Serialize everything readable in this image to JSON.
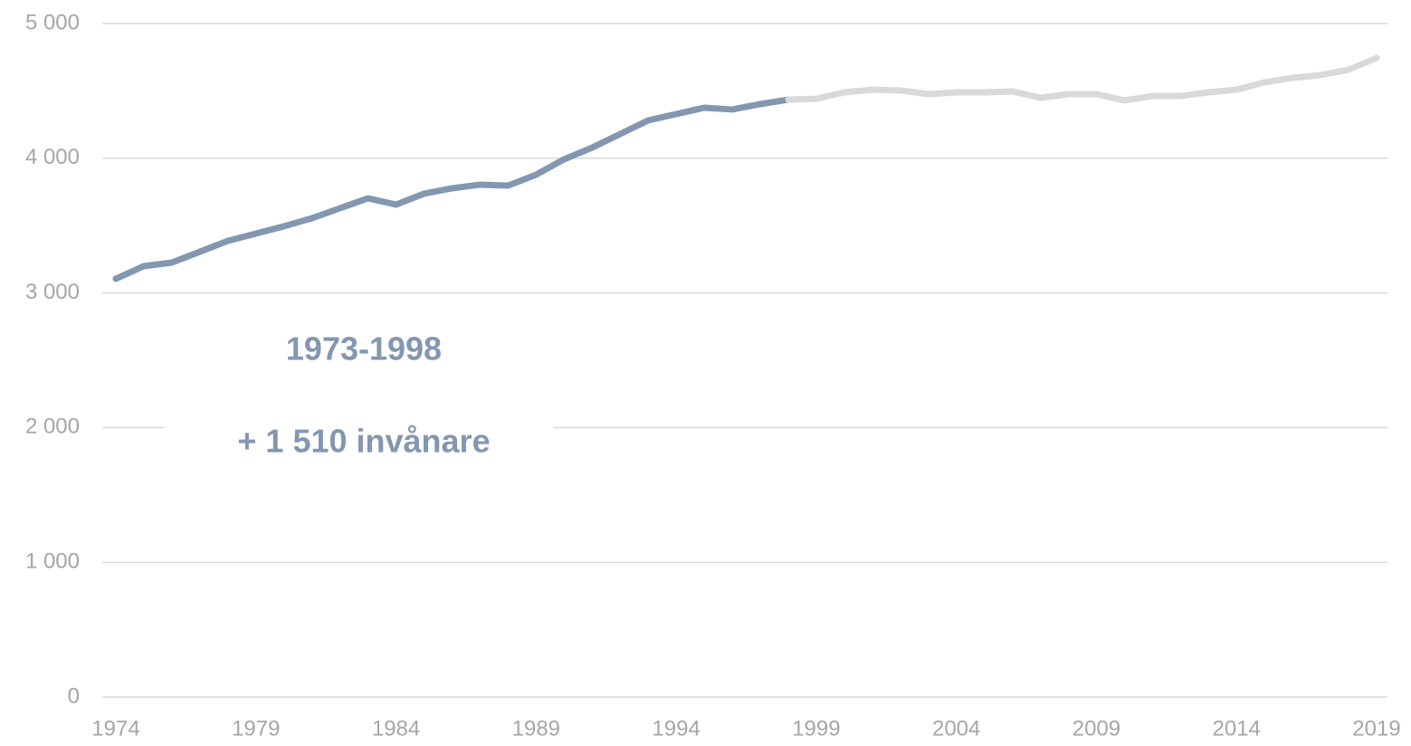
{
  "chart_data": {
    "type": "line",
    "x": [
      1974,
      1975,
      1976,
      1977,
      1978,
      1979,
      1980,
      1981,
      1982,
      1983,
      1984,
      1985,
      1986,
      1987,
      1988,
      1989,
      1990,
      1991,
      1992,
      1993,
      1994,
      1995,
      1996,
      1997,
      1998,
      1999,
      2000,
      2001,
      2002,
      2003,
      2004,
      2005,
      2006,
      2007,
      2008,
      2009,
      2010,
      2011,
      2012,
      2013,
      2014,
      2015,
      2016,
      2017,
      2018,
      2019
    ],
    "series": [
      {
        "color": "#8497b0",
        "values": [
          3105,
          3199,
          3226,
          3306,
          3387,
          3441,
          3495,
          3555,
          3629,
          3703,
          3656,
          3737,
          3777,
          3804,
          3797,
          3878,
          3992,
          4079,
          4180,
          4281,
          4328,
          4375,
          4362,
          4402,
          4435,
          null,
          null,
          null,
          null,
          null,
          null,
          null,
          null,
          null,
          null,
          null,
          null,
          null,
          null,
          null,
          null,
          null,
          null,
          null,
          null,
          null
        ]
      },
      {
        "color": "#d9d9d9",
        "values": [
          null,
          null,
          null,
          null,
          null,
          null,
          null,
          null,
          null,
          null,
          null,
          null,
          null,
          null,
          null,
          null,
          null,
          null,
          null,
          null,
          null,
          null,
          null,
          null,
          4435,
          4442,
          4489,
          4509,
          4503,
          4476,
          4489,
          4489,
          4496,
          4449,
          4476,
          4476,
          4429,
          4462,
          4462,
          4489,
          4509,
          4563,
          4597,
          4617,
          4657,
          4745
        ]
      }
    ],
    "xlim": [
      1974,
      2019
    ],
    "xticks": [
      1974,
      1979,
      1984,
      1989,
      1994,
      1999,
      2004,
      2009,
      2014,
      2019
    ],
    "ylim": [
      0,
      5000
    ],
    "yticks": [
      0,
      {
        "value": 1000,
        "label": "1 000"
      },
      {
        "value": 2000,
        "label": "2 000"
      },
      {
        "value": 3000,
        "label": "3 000"
      },
      {
        "value": 4000,
        "label": "4 000"
      },
      {
        "value": 5000,
        "label": "5 000"
      }
    ],
    "grid": true,
    "annotations": [
      "1973-1998",
      "+ 1 510  invånare"
    ]
  }
}
